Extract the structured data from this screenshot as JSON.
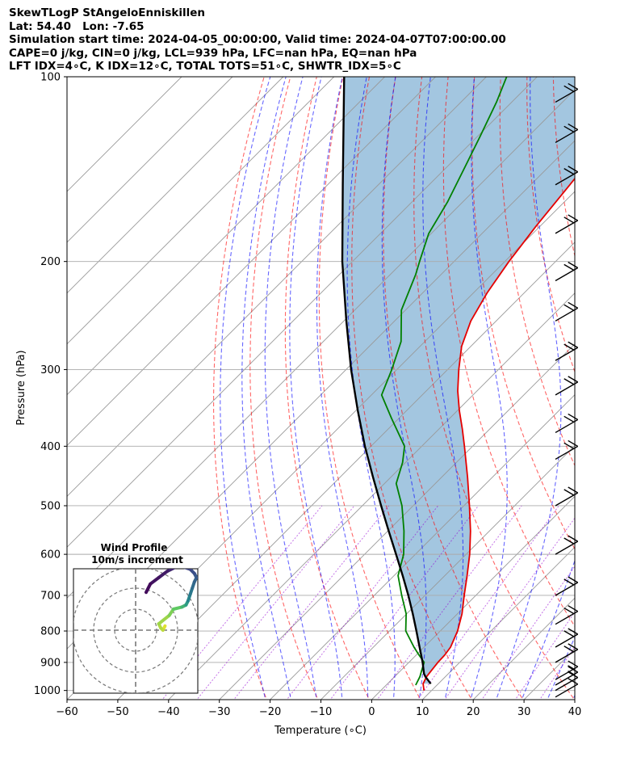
{
  "header": {
    "line1": "SkewTLogP StAngeloEnniskillen",
    "line2": "Lat: 54.40   Lon: -7.65",
    "line3": "Simulation start time: 2024-04-05_00:00:00, Valid time: 2024-04-07T07:00:00.00",
    "line4": "CAPE=0 j/kg, CIN=0 j/kg, LCL=939 hPa, LFC=nan hPa, EQ=nan hPa",
    "line5": "LFT IDX=4∘C, K IDX=12∘C, TOTAL TOTS=51∘C, SHWTR_IDX=5∘C"
  },
  "chart_data": [
    {
      "type": "line",
      "title": "SkewTLogP StAngeloEnniskillen",
      "xlabel": "Temperature (∘C)",
      "ylabel": "Pressure (hPa)",
      "xlim": [
        -60,
        40
      ],
      "ylim": [
        1035,
        100
      ],
      "yscale": "log",
      "skew": true,
      "grid": true,
      "x_ticks": [
        -60,
        -50,
        -40,
        -30,
        -20,
        -10,
        0,
        10,
        20,
        30,
        40
      ],
      "y_ticks": [
        100,
        200,
        300,
        400,
        500,
        600,
        700,
        800,
        900,
        1000
      ],
      "x_tick_labels": [
        "−60",
        "−50",
        "−40",
        "−30",
        "−20",
        "−10",
        "0",
        "10",
        "20",
        "30",
        "40"
      ],
      "y_tick_labels": [
        "100",
        "200",
        "300",
        "400",
        "500",
        "600",
        "700",
        "800",
        "900",
        "1000"
      ],
      "colors": {
        "temperature": "#e50000",
        "dewpoint": "#008000",
        "parcel": "#000000",
        "cape_fill": "#a3c6e0",
        "dry_adiabat": "#ff0000",
        "moist_adiabat": "#0000ff",
        "mixing_ratio": "#9400d3",
        "isotherm": "#999999"
      },
      "series": [
        {
          "key": "temperature",
          "points": [
            [
              1000,
              8.5
            ],
            [
              975,
              7.0
            ],
            [
              950,
              6.3
            ],
            [
              925,
              6.0
            ],
            [
              900,
              5.7
            ],
            [
              875,
              5.6
            ],
            [
              850,
              5.2
            ],
            [
              800,
              3.4
            ],
            [
              750,
              0.9
            ],
            [
              700,
              -2.3
            ],
            [
              650,
              -5.6
            ],
            [
              600,
              -9.3
            ],
            [
              550,
              -13.7
            ],
            [
              500,
              -18.9
            ],
            [
              450,
              -24.8
            ],
            [
              400,
              -31.6
            ],
            [
              375,
              -35.4
            ],
            [
              350,
              -39.6
            ],
            [
              325,
              -43.8
            ],
            [
              300,
              -47.8
            ],
            [
              275,
              -51.8
            ],
            [
              250,
              -55.0
            ],
            [
              225,
              -57.3
            ],
            [
              200,
              -59.2
            ],
            [
              175,
              -60.8
            ],
            [
              150,
              -62.3
            ],
            [
              140,
              -63.0
            ],
            [
              125,
              -63.9
            ],
            [
              112,
              -64.8
            ],
            [
              100,
              -65.3
            ]
          ]
        },
        {
          "key": "dewpoint",
          "points": [
            [
              980,
              5.8
            ],
            [
              950,
              5.0
            ],
            [
              925,
              4.0
            ],
            [
              900,
              3.0
            ],
            [
              875,
              0.5
            ],
            [
              850,
              -2.0
            ],
            [
              800,
              -6.8
            ],
            [
              750,
              -10.1
            ],
            [
              700,
              -14.6
            ],
            [
              650,
              -19.2
            ],
            [
              600,
              -22.3
            ],
            [
              550,
              -26.8
            ],
            [
              500,
              -32.2
            ],
            [
              460,
              -37.7
            ],
            [
              425,
              -40.6
            ],
            [
              400,
              -43.4
            ],
            [
              360,
              -51.5
            ],
            [
              330,
              -58.0
            ],
            [
              300,
              -61.0
            ],
            [
              270,
              -64.7
            ],
            [
              240,
              -70.8
            ],
            [
              210,
              -75.0
            ],
            [
              200,
              -76.8
            ],
            [
              180,
              -80.5
            ],
            [
              160,
              -83.0
            ],
            [
              140,
              -86.5
            ],
            [
              125,
              -89.5
            ],
            [
              110,
              -93.0
            ],
            [
              100,
              -96.0
            ]
          ]
        },
        {
          "key": "parcel",
          "points": [
            [
              975,
              8.5
            ],
            [
              950,
              6.1
            ],
            [
              939,
              5.2
            ],
            [
              900,
              2.7
            ],
            [
              850,
              -0.9
            ],
            [
              800,
              -4.7
            ],
            [
              750,
              -8.8
            ],
            [
              700,
              -13.3
            ],
            [
              650,
              -18.3
            ],
            [
              600,
              -23.8
            ],
            [
              550,
              -29.8
            ],
            [
              500,
              -36.3
            ],
            [
              450,
              -43.4
            ],
            [
              400,
              -51.2
            ],
            [
              350,
              -59.6
            ],
            [
              300,
              -69.0
            ],
            [
              250,
              -79.5
            ],
            [
              200,
              -92.0
            ],
            [
              150,
              -107.0
            ],
            [
              100,
              -128.0
            ]
          ]
        }
      ],
      "wind_barbs": [
        {
          "p": 1025,
          "speed_kt": 10,
          "dir_deg": 240
        },
        {
          "p": 1000,
          "speed_kt": 10,
          "dir_deg": 240
        },
        {
          "p": 980,
          "speed_kt": 15,
          "dir_deg": 240
        },
        {
          "p": 960,
          "speed_kt": 15,
          "dir_deg": 240
        },
        {
          "p": 900,
          "speed_kt": 20,
          "dir_deg": 240
        },
        {
          "p": 850,
          "speed_kt": 20,
          "dir_deg": 240
        },
        {
          "p": 780,
          "speed_kt": 20,
          "dir_deg": 240
        },
        {
          "p": 700,
          "speed_kt": 20,
          "dir_deg": 240
        },
        {
          "p": 600,
          "speed_kt": 20,
          "dir_deg": 240
        },
        {
          "p": 500,
          "speed_kt": 20,
          "dir_deg": 240
        },
        {
          "p": 420,
          "speed_kt": 20,
          "dir_deg": 240
        },
        {
          "p": 380,
          "speed_kt": 20,
          "dir_deg": 240
        },
        {
          "p": 330,
          "speed_kt": 20,
          "dir_deg": 240
        },
        {
          "p": 290,
          "speed_kt": 20,
          "dir_deg": 240
        },
        {
          "p": 250,
          "speed_kt": 20,
          "dir_deg": 240
        },
        {
          "p": 215,
          "speed_kt": 20,
          "dir_deg": 240
        },
        {
          "p": 180,
          "speed_kt": 20,
          "dir_deg": 240
        },
        {
          "p": 150,
          "speed_kt": 20,
          "dir_deg": 240
        },
        {
          "p": 128,
          "speed_kt": 20,
          "dir_deg": 240
        },
        {
          "p": 110,
          "speed_kt": 20,
          "dir_deg": 240
        }
      ],
      "hodograph": {
        "title": "Wind Profile",
        "subtitle": "10m/s increment",
        "ring_increment_ms": 10,
        "path": [
          [
            14,
            2,
            0.05
          ],
          [
            13,
            0,
            0.1
          ],
          [
            12,
            1,
            0.12
          ],
          [
            11,
            3,
            0.15
          ],
          [
            16,
            7,
            0.2
          ],
          [
            18,
            10,
            0.25
          ],
          [
            22,
            11,
            0.35
          ],
          [
            24,
            12,
            0.45
          ],
          [
            25,
            14,
            0.55
          ],
          [
            26,
            17,
            0.6
          ],
          [
            27,
            20,
            0.65
          ],
          [
            28,
            23,
            0.68
          ],
          [
            29,
            25,
            0.72
          ],
          [
            28,
            27,
            0.76
          ],
          [
            26,
            29,
            0.8
          ],
          [
            23,
            30,
            0.84
          ],
          [
            19,
            30,
            0.88
          ],
          [
            15,
            28,
            0.92
          ],
          [
            11,
            25,
            0.94
          ],
          [
            7,
            22,
            0.97
          ],
          [
            5,
            18,
            1.0
          ]
        ]
      }
    }
  ]
}
